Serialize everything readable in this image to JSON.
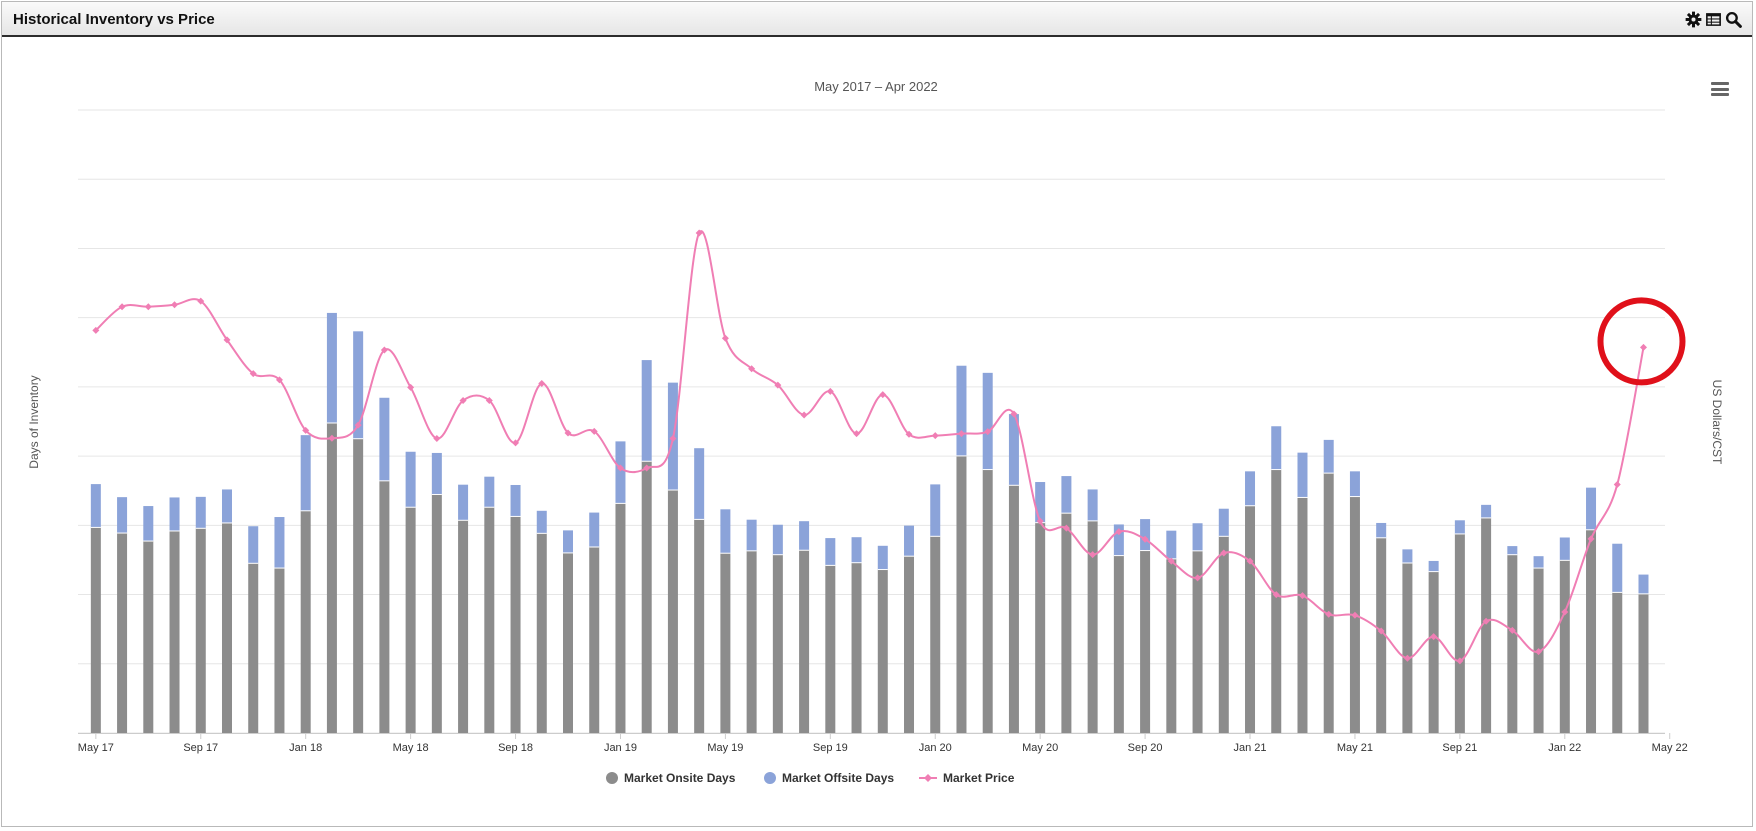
{
  "panel": {
    "title": "Historical Inventory vs Price",
    "icons": [
      "gear-icon",
      "table-icon",
      "zoom-icon"
    ]
  },
  "colors": {
    "onsite": "#8c8c8c",
    "offsite": "#8ba3d9",
    "price": "#f07eb4",
    "highlight": "#e0101a",
    "grid": "#e6e6e6"
  },
  "chart_data": {
    "type": "bar",
    "subtitle": "May 2017 – Apr 2022",
    "ylabel_left": "Days of Inventory",
    "ylabel_right": "US Dollars/CST",
    "stacked": true,
    "grid": true,
    "legend_position": "bottom-center",
    "x_tick_labels": [
      "May 17",
      "Sep 17",
      "Jan 18",
      "May 18",
      "Sep 18",
      "Jan 19",
      "May 19",
      "Sep 19",
      "Jan 20",
      "May 20",
      "Sep 20",
      "Jan 21",
      "May 21",
      "Sep 21",
      "Jan 22",
      "May 22"
    ],
    "series": [
      {
        "name": "Market Onsite Days",
        "type": "bar",
        "values": [
          69.3,
          67.4,
          64.7,
          68.1,
          69.0,
          70.8,
          57.2,
          55.6,
          74.9,
          104.5,
          99.2,
          85.0,
          76.1,
          80.4,
          71.7,
          76.1,
          73.0,
          67.3,
          60.7,
          62.7,
          77.4,
          91.6,
          81.9,
          72.0,
          60.6,
          61.4,
          60.1,
          61.6,
          56.5,
          57.4,
          55.1,
          59.6,
          66.3,
          93.4,
          88.8,
          83.5,
          70.9,
          74.1,
          71.5,
          59.8,
          61.5,
          58.7,
          61.4,
          66.3,
          76.6,
          88.8,
          79.4,
          87.6,
          79.7,
          65.8,
          57.3,
          54.4,
          67.1,
          72.5,
          60.1,
          55.6,
          58.2,
          68.5,
          47.4,
          46.9
        ],
        "color": "#8c8c8c"
      },
      {
        "name": "Market Offsite Days",
        "type": "bar",
        "values": [
          14.6,
          12.1,
          11.8,
          11.3,
          10.6,
          11.3,
          12.5,
          17.2,
          25.5,
          37.1,
          36.2,
          28.0,
          18.7,
          14.0,
          12.0,
          10.3,
          10.6,
          7.6,
          7.6,
          11.6,
          20.9,
          34.1,
          36.2,
          24.0,
          14.8,
          10.5,
          10.1,
          9.8,
          9.2,
          8.6,
          8.0,
          10.3,
          17.5,
          30.4,
          32.6,
          24.0,
          13.7,
          12.5,
          10.6,
          10.5,
          10.6,
          9.5,
          9.3,
          9.3,
          11.6,
          14.6,
          15.1,
          11.2,
          8.5,
          5.0,
          4.6,
          3.6,
          4.6,
          4.4,
          2.9,
          4.0,
          7.7,
          14.2,
          16.4,
          6.5
        ],
        "color": "#8ba3d9"
      },
      {
        "name": "Market Price",
        "type": "line",
        "values": [
          122.8,
          130.0,
          130.0,
          130.6,
          131.7,
          119.9,
          109.6,
          107.7,
          92.3,
          89.9,
          93.9,
          116.8,
          105.4,
          89.8,
          101.4,
          101.4,
          88.5,
          106.6,
          91.5,
          92.0,
          80.8,
          80.8,
          89.8,
          152.5,
          120.4,
          111.1,
          106.1,
          97.0,
          104.2,
          91.3,
          103.2,
          91.1,
          90.7,
          91.3,
          91.9,
          97.3,
          64.6,
          62.5,
          54.4,
          61.4,
          59.1,
          52.4,
          47.3,
          54.9,
          52.4,
          42.2,
          41.9,
          36.2,
          35.9,
          31.1,
          22.8,
          29.4,
          22.0,
          34.1,
          31.3,
          24.8,
          36.9,
          59.2,
          75.8,
          117.6
        ],
        "color": "#f07eb4",
        "highlighted_point_index": 59
      }
    ]
  }
}
